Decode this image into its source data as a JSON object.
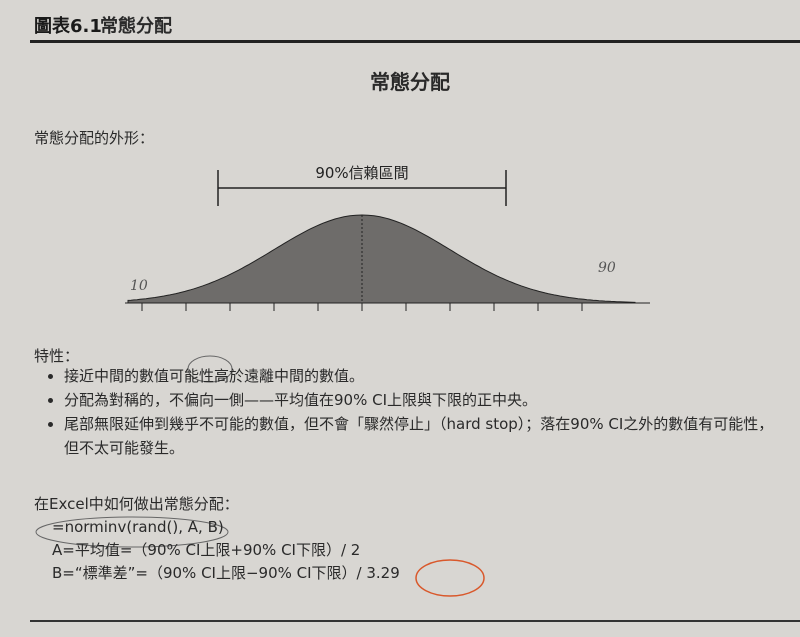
{
  "figure": {
    "label": "圖表6.1",
    "title": "常態分配"
  },
  "chart_title": "常態分配",
  "shape_label": "常態分配的外形：",
  "interval_label": "90%信賴區間",
  "handwritten": {
    "left": "10",
    "right": "90"
  },
  "properties": {
    "label": "特性：",
    "items": [
      "接近中間的數值可能性高於遠離中間的數值。",
      "分配為對稱的，不偏向一側——平均值在90% CI上限與下限的正中央。",
      "尾部無限延伸到幾乎不可能的數值，但不會「驟然停止」（hard stop）；落在90% CI之外的數值有可能性，但不太可能發生。"
    ]
  },
  "excel": {
    "heading": "在Excel中如何做出常態分配：",
    "formula": "=norminv(rand(), A, B)",
    "a_line": "A=平均值=（90% CI上限+90% CI下限）/ 2",
    "b_line": "B=“標準差”=（90% CI上限−90% CI下限）/ 3.29"
  },
  "colors": {
    "curve_fill": "#6e6c6a",
    "annotation_red": "#d9582b",
    "pen": "#555555"
  }
}
